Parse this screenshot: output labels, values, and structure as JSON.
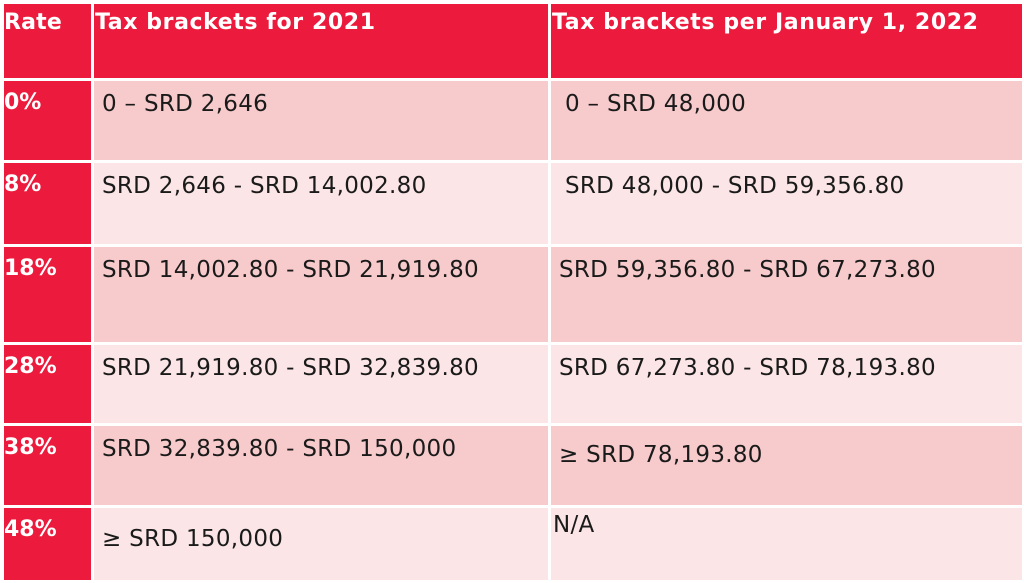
{
  "table": {
    "headers": {
      "rate": "Rate",
      "col_2021": "Tax brackets for 2021",
      "col_2022": "Tax brackets per January 1, 2022"
    },
    "rows": [
      {
        "rate": "0%",
        "bracket_2021": "0 – SRD 2,646",
        "bracket_2022": "0 – SRD 48,000"
      },
      {
        "rate": "8%",
        "bracket_2021": "SRD 2,646 - SRD 14,002.80",
        "bracket_2022": "SRD 48,000 - SRD 59,356.80"
      },
      {
        "rate": "18%",
        "bracket_2021": "SRD 14,002.80 - SRD 21,919.80",
        "bracket_2022": "SRD 59,356.80 - SRD 67,273.80"
      },
      {
        "rate": "28%",
        "bracket_2021": "SRD 21,919.80 - SRD 32,839.80",
        "bracket_2022": "SRD 67,273.80 - SRD 78,193.80"
      },
      {
        "rate": "38%",
        "bracket_2021": "SRD 32,839.80 - SRD 150,000",
        "bracket_2022": "≥ SRD 78,193.80"
      },
      {
        "rate": "48%",
        "bracket_2021": "≥ SRD 150,000",
        "bracket_2022": "N/A"
      }
    ]
  },
  "colors": {
    "header_red": "#ec1b3d",
    "row_dark_pink": "#f7cacb",
    "row_light_pink": "#fbe5e6",
    "text_dark": "#1a1a1a",
    "text_white": "#ffffff"
  }
}
